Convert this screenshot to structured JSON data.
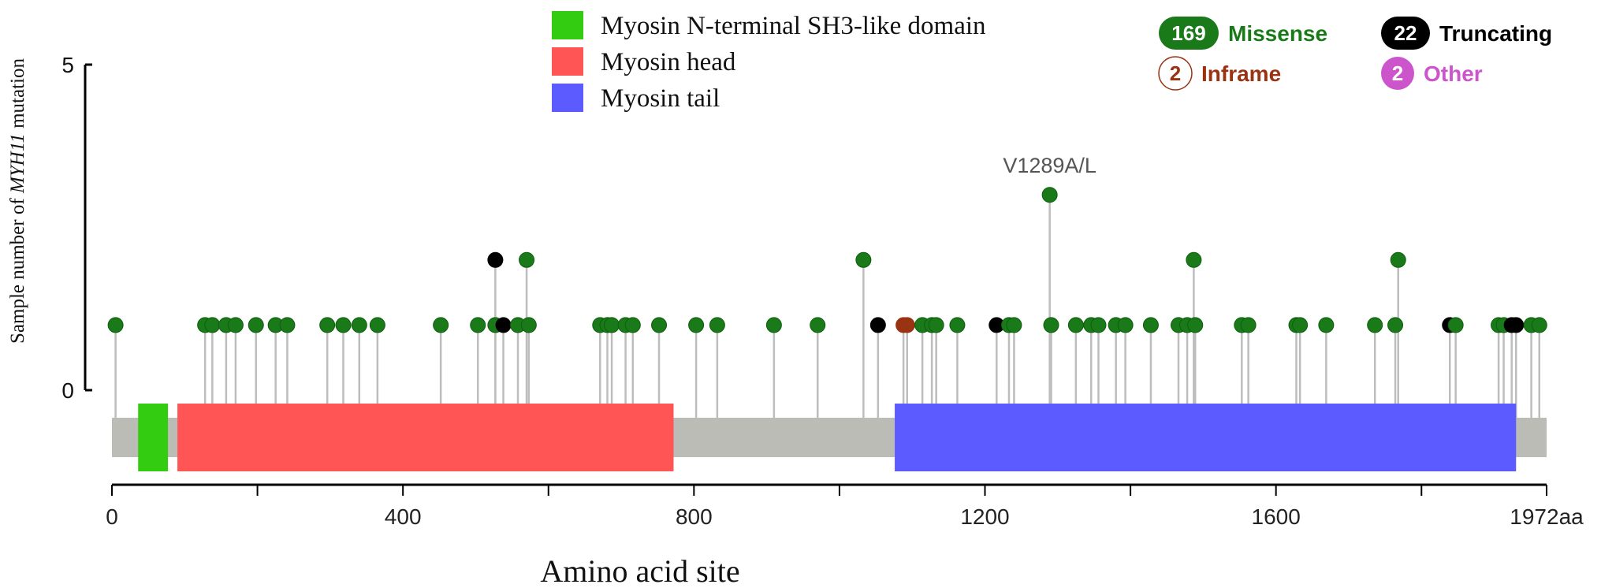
{
  "chart_data": {
    "type": "lollipop",
    "ylabel_prefix": "Sample number of ",
    "ylabel_gene": "MYH11",
    "ylabel_suffix": " mutation",
    "xlabel": "Amino acid site",
    "x_range": [
      0,
      1972
    ],
    "y_range": [
      0,
      5
    ],
    "x_ticks": [
      {
        "value": 0,
        "label": "0"
      },
      {
        "value": 400,
        "label": "400"
      },
      {
        "value": 800,
        "label": "800"
      },
      {
        "value": 1200,
        "label": "1200"
      },
      {
        "value": 1600,
        "label": "1600"
      },
      {
        "value": 1972,
        "label": "1972aa"
      }
    ],
    "x_minor_ticks": [
      200,
      600,
      1000,
      1400,
      1800
    ],
    "y_ticks": [
      {
        "value": 0,
        "label": "0"
      },
      {
        "value": 5,
        "label": "5"
      }
    ],
    "domains": [
      {
        "name": "Myosin N-terminal SH3-like domain",
        "start": 36,
        "end": 77,
        "color": "#33cc11"
      },
      {
        "name": "Myosin head",
        "start": 90,
        "end": 772,
        "color": "#ff5555"
      },
      {
        "name": "Myosin tail",
        "start": 1076,
        "end": 1930,
        "color": "#5b5bff"
      }
    ],
    "annotation": {
      "label": "V1289A/L",
      "x": 1289,
      "y": 3
    },
    "mutation_types": [
      {
        "key": "missense",
        "count": "169",
        "label": "Missense",
        "color": "#1a7a1a",
        "text_color": "#1a7a1a",
        "filled": true
      },
      {
        "key": "truncating",
        "count": "22",
        "label": "Truncating",
        "color": "#000000",
        "text_color": "#000000",
        "filled": true
      },
      {
        "key": "inframe",
        "count": "2",
        "label": "Inframe",
        "color": "#993311",
        "text_color": "#993311",
        "filled": false
      },
      {
        "key": "other",
        "count": "2",
        "label": "Other",
        "color": "#cc55cc",
        "text_color": "#cc55cc",
        "filled": true
      }
    ],
    "mutations": [
      {
        "x": 5,
        "y": 1,
        "type": "missense"
      },
      {
        "x": 128,
        "y": 1,
        "type": "missense"
      },
      {
        "x": 138,
        "y": 1,
        "type": "missense"
      },
      {
        "x": 157,
        "y": 1,
        "type": "missense"
      },
      {
        "x": 170,
        "y": 1,
        "type": "missense"
      },
      {
        "x": 198,
        "y": 1,
        "type": "missense"
      },
      {
        "x": 225,
        "y": 1,
        "type": "missense"
      },
      {
        "x": 241,
        "y": 1,
        "type": "missense"
      },
      {
        "x": 296,
        "y": 1,
        "type": "missense"
      },
      {
        "x": 318,
        "y": 1,
        "type": "missense"
      },
      {
        "x": 340,
        "y": 1,
        "type": "missense"
      },
      {
        "x": 365,
        "y": 1,
        "type": "missense"
      },
      {
        "x": 452,
        "y": 1,
        "type": "missense"
      },
      {
        "x": 503,
        "y": 1,
        "type": "missense"
      },
      {
        "x": 527,
        "y": 2,
        "type": "truncating"
      },
      {
        "x": 527,
        "y": 1,
        "type": "missense"
      },
      {
        "x": 538,
        "y": 1,
        "type": "truncating"
      },
      {
        "x": 558,
        "y": 1,
        "type": "missense"
      },
      {
        "x": 570,
        "y": 2,
        "type": "missense"
      },
      {
        "x": 573,
        "y": 1,
        "type": "missense"
      },
      {
        "x": 671,
        "y": 1,
        "type": "missense"
      },
      {
        "x": 681,
        "y": 1,
        "type": "missense"
      },
      {
        "x": 687,
        "y": 1,
        "type": "missense"
      },
      {
        "x": 706,
        "y": 1,
        "type": "missense"
      },
      {
        "x": 716,
        "y": 1,
        "type": "missense"
      },
      {
        "x": 752,
        "y": 1,
        "type": "missense"
      },
      {
        "x": 803,
        "y": 1,
        "type": "missense"
      },
      {
        "x": 832,
        "y": 1,
        "type": "missense"
      },
      {
        "x": 910,
        "y": 1,
        "type": "missense"
      },
      {
        "x": 970,
        "y": 1,
        "type": "missense"
      },
      {
        "x": 1033,
        "y": 2,
        "type": "missense"
      },
      {
        "x": 1053,
        "y": 1,
        "type": "truncating"
      },
      {
        "x": 1088,
        "y": 1,
        "type": "inframe"
      },
      {
        "x": 1093,
        "y": 1,
        "type": "inframe"
      },
      {
        "x": 1114,
        "y": 1,
        "type": "missense"
      },
      {
        "x": 1127,
        "y": 1,
        "type": "missense"
      },
      {
        "x": 1133,
        "y": 1,
        "type": "missense"
      },
      {
        "x": 1162,
        "y": 1,
        "type": "missense"
      },
      {
        "x": 1216,
        "y": 1,
        "type": "truncating"
      },
      {
        "x": 1233,
        "y": 1,
        "type": "missense"
      },
      {
        "x": 1240,
        "y": 1,
        "type": "missense"
      },
      {
        "x": 1289,
        "y": 3,
        "type": "missense"
      },
      {
        "x": 1291,
        "y": 1,
        "type": "missense"
      },
      {
        "x": 1325,
        "y": 1,
        "type": "missense"
      },
      {
        "x": 1346,
        "y": 1,
        "type": "missense"
      },
      {
        "x": 1356,
        "y": 1,
        "type": "missense"
      },
      {
        "x": 1380,
        "y": 1,
        "type": "missense"
      },
      {
        "x": 1393,
        "y": 1,
        "type": "missense"
      },
      {
        "x": 1428,
        "y": 1,
        "type": "missense"
      },
      {
        "x": 1466,
        "y": 1,
        "type": "missense"
      },
      {
        "x": 1478,
        "y": 1,
        "type": "missense"
      },
      {
        "x": 1487,
        "y": 2,
        "type": "missense"
      },
      {
        "x": 1489,
        "y": 1,
        "type": "missense"
      },
      {
        "x": 1553,
        "y": 1,
        "type": "missense"
      },
      {
        "x": 1562,
        "y": 1,
        "type": "missense"
      },
      {
        "x": 1628,
        "y": 1,
        "type": "missense"
      },
      {
        "x": 1633,
        "y": 1,
        "type": "missense"
      },
      {
        "x": 1669,
        "y": 1,
        "type": "missense"
      },
      {
        "x": 1736,
        "y": 1,
        "type": "missense"
      },
      {
        "x": 1764,
        "y": 1,
        "type": "missense"
      },
      {
        "x": 1768,
        "y": 2,
        "type": "missense"
      },
      {
        "x": 1839,
        "y": 1,
        "type": "truncating"
      },
      {
        "x": 1847,
        "y": 1,
        "type": "missense"
      },
      {
        "x": 1906,
        "y": 1,
        "type": "missense"
      },
      {
        "x": 1913,
        "y": 1,
        "type": "missense"
      },
      {
        "x": 1924,
        "y": 1,
        "type": "truncating"
      },
      {
        "x": 1930,
        "y": 1,
        "type": "truncating"
      },
      {
        "x": 1951,
        "y": 1,
        "type": "missense"
      },
      {
        "x": 1962,
        "y": 1,
        "type": "missense"
      }
    ]
  }
}
